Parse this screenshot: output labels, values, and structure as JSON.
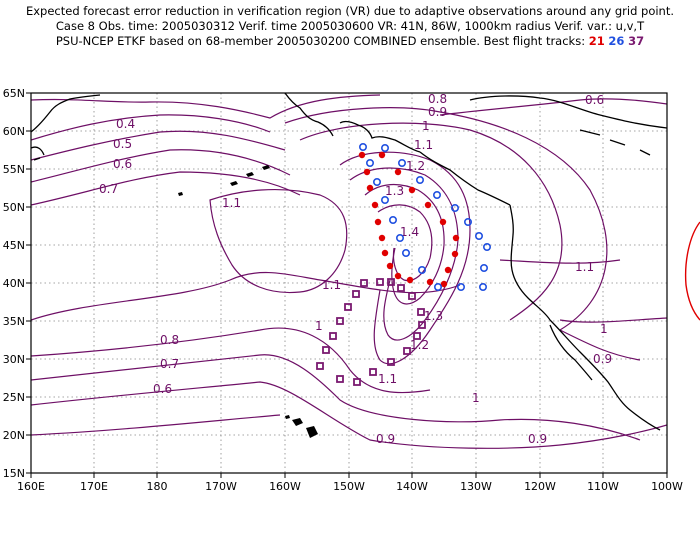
{
  "header": {
    "line1": "Expected forecast error reduction in verification region (VR) due to adaptive observations around any grid point.",
    "line2": "Case 8  Obs. time: 2005030312  Verif. time 2005030600  VR: 41N, 86W, 1000km radius  Verif. var.: u,v,T",
    "line3_prefix": "PSU-NCEP ETKF based on 68-member 2005030200 COMBINED ensemble.  Best flight tracks:",
    "track_a": "21",
    "track_b": "26",
    "track_c": "37"
  },
  "map": {
    "lon_labels": [
      "160E",
      "170E",
      "180",
      "170W",
      "160W",
      "150W",
      "140W",
      "130W",
      "120W",
      "110W",
      "100W"
    ],
    "lat_labels": [
      "65N",
      "60N",
      "55N",
      "50N",
      "45N",
      "40N",
      "35N",
      "30N",
      "25N",
      "20N",
      "15N"
    ],
    "contour_color": "#6e0f66",
    "contour_labels": [
      {
        "text": "0.8"
      },
      {
        "text": "0.9"
      },
      {
        "text": "0.6"
      },
      {
        "text": "0.4"
      },
      {
        "text": "0.5"
      },
      {
        "text": "0.6"
      },
      {
        "text": "0.7"
      },
      {
        "text": "1.1"
      },
      {
        "text": "1"
      },
      {
        "text": "1.1"
      },
      {
        "text": "1.2"
      },
      {
        "text": "1.3"
      },
      {
        "text": "1.4"
      },
      {
        "text": "1.1"
      },
      {
        "text": "1"
      },
      {
        "text": "0.8"
      },
      {
        "text": "0.7"
      },
      {
        "text": "0.6"
      },
      {
        "text": "1.3"
      },
      {
        "text": "1.2"
      },
      {
        "text": "1.1"
      },
      {
        "text": "1.1"
      },
      {
        "text": "1"
      },
      {
        "text": "0.9"
      },
      {
        "text": "1"
      },
      {
        "text": "0.9"
      },
      {
        "text": "0.9"
      }
    ],
    "track_colors": {
      "a": "#e00000",
      "b": "#2050e0",
      "c": "#7a1a70"
    }
  }
}
